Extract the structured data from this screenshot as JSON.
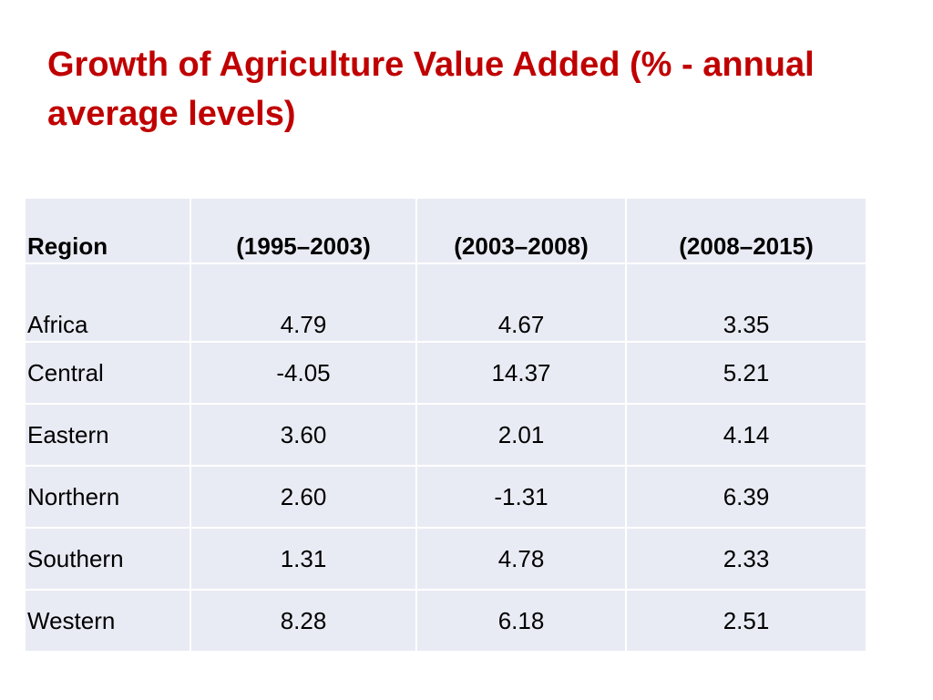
{
  "title": "Growth of Agriculture Value Added  (% - annual average levels)",
  "chart_data": {
    "type": "table",
    "title": "Growth of Agriculture Value Added  (% - annual average levels)",
    "columns": [
      "Region",
      "(1995–2003)",
      "(2003–2008)",
      "(2008–2015)"
    ],
    "rows": [
      {
        "region": "Africa",
        "values": [
          "4.79",
          "4.67",
          "3.35"
        ]
      },
      {
        "region": "Central",
        "values": [
          "-4.05",
          "14.37",
          "5.21"
        ]
      },
      {
        "region": "Eastern",
        "values": [
          "3.60",
          "2.01",
          "4.14"
        ]
      },
      {
        "region": "Northern",
        "values": [
          "2.60",
          "-1.31",
          "6.39"
        ]
      },
      {
        "region": "Southern",
        "values": [
          "1.31",
          "4.78",
          "2.33"
        ]
      },
      {
        "region": "Western",
        "values": [
          "8.28",
          "6.18",
          "2.51"
        ]
      }
    ]
  },
  "colors": {
    "title": "#c00000",
    "cell_background": "#e9ebf4",
    "grid": "#ffffff"
  }
}
